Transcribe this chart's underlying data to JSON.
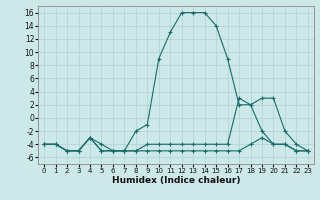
{
  "xlabel": "Humidex (Indice chaleur)",
  "xlim": [
    -0.5,
    23.5
  ],
  "ylim": [
    -7,
    17
  ],
  "yticks": [
    -6,
    -4,
    -2,
    0,
    2,
    4,
    6,
    8,
    10,
    12,
    14,
    16
  ],
  "xticks": [
    0,
    1,
    2,
    3,
    4,
    5,
    6,
    7,
    8,
    9,
    10,
    11,
    12,
    13,
    14,
    15,
    16,
    17,
    18,
    19,
    20,
    21,
    22,
    23
  ],
  "bg_color": "#cde8e8",
  "line_color": "#1a6b6b",
  "series": [
    {
      "x": [
        0,
        1,
        2,
        3,
        4,
        5,
        6,
        7,
        8,
        9,
        10,
        11,
        12,
        13,
        14,
        15,
        16,
        17,
        18,
        19,
        20,
        21,
        22,
        23
      ],
      "y": [
        -4,
        -4,
        -5,
        -5,
        -3,
        -5,
        -5,
        -5,
        -2,
        -1,
        9,
        13,
        16,
        16,
        16,
        14,
        9,
        2,
        2,
        3,
        3,
        -2,
        -4,
        -5
      ]
    },
    {
      "x": [
        0,
        1,
        2,
        3,
        4,
        5,
        6,
        7,
        8,
        9,
        10,
        11,
        12,
        13,
        14,
        15,
        16,
        17,
        18,
        19,
        20,
        21,
        22,
        23
      ],
      "y": [
        -4,
        -4,
        -5,
        -5,
        -3,
        -5,
        -5,
        -5,
        -5,
        -4,
        -4,
        -4,
        -4,
        -4,
        -4,
        -4,
        -4,
        3,
        2,
        -2,
        -4,
        -4,
        -5,
        -5
      ]
    },
    {
      "x": [
        0,
        1,
        2,
        3,
        4,
        5,
        6,
        7,
        8,
        9,
        10,
        11,
        12,
        13,
        14,
        15,
        16,
        17,
        18,
        19,
        20,
        21,
        22,
        23
      ],
      "y": [
        -4,
        -4,
        -5,
        -5,
        -3,
        -4,
        -5,
        -5,
        -5,
        -5,
        -5,
        -5,
        -5,
        -5,
        -5,
        -5,
        -5,
        -5,
        -4,
        -3,
        -4,
        -4,
        -5,
        -5
      ]
    }
  ]
}
